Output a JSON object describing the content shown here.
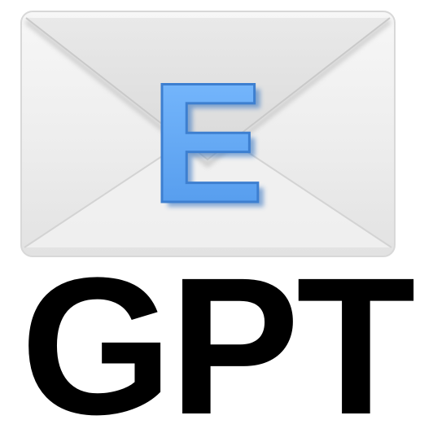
{
  "logo": {
    "icon": "envelope-icon",
    "badge_letter": "E",
    "wordmark": "GPT"
  },
  "colors": {
    "envelope_body": "#ececec",
    "envelope_edge": "#d4d4d4",
    "badge_fill": "#6aaef5",
    "badge_shadow": "#3d7fd0",
    "wordmark": "#000000",
    "background": "#ffffff"
  }
}
